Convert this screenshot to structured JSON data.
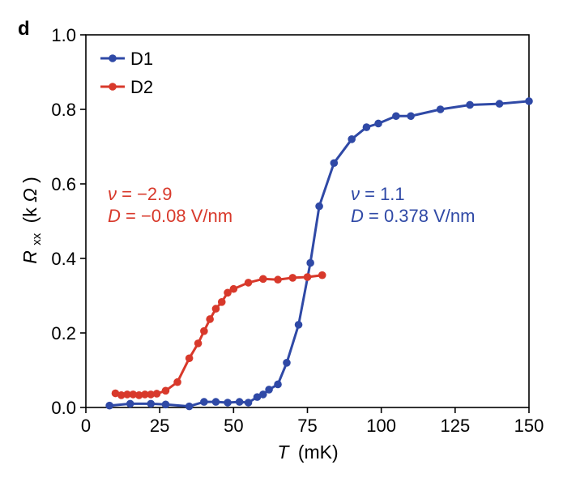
{
  "panel_label": "d",
  "chart_data": {
    "type": "line",
    "xlabel": {
      "symbol": "T",
      "unit": "(mK)"
    },
    "ylabel": {
      "symbol": "R",
      "subscript": "xx",
      "unit_open": "(k",
      "unit_symbol": "Ω",
      "unit_close": ")"
    },
    "xlim": [
      0,
      150
    ],
    "ylim": [
      0,
      1.0
    ],
    "x_ticks": [
      0,
      25,
      50,
      75,
      100,
      125,
      150
    ],
    "x_tick_labels": [
      "0",
      "25",
      "50",
      "75",
      "100",
      "125",
      "150"
    ],
    "y_ticks": [
      0,
      0.2,
      0.4,
      0.6,
      0.8,
      1.0
    ],
    "y_tick_labels": [
      "0.0",
      "0.2",
      "0.4",
      "0.6",
      "0.8",
      "1.0"
    ],
    "grid": false,
    "legend_position": "top-left",
    "series": [
      {
        "name": "D1",
        "color": "#2f49a6",
        "points": [
          [
            8,
            0.005
          ],
          [
            15,
            0.01
          ],
          [
            22,
            0.01
          ],
          [
            27,
            0.008
          ],
          [
            35,
            0.003
          ],
          [
            40,
            0.015
          ],
          [
            44,
            0.015
          ],
          [
            48,
            0.013
          ],
          [
            52,
            0.015
          ],
          [
            55,
            0.013
          ],
          [
            58,
            0.028
          ],
          [
            60,
            0.035
          ],
          [
            62,
            0.048
          ],
          [
            65,
            0.062
          ],
          [
            68,
            0.12
          ],
          [
            72,
            0.222
          ],
          [
            76,
            0.388
          ],
          [
            79,
            0.54
          ],
          [
            84,
            0.656
          ],
          [
            90,
            0.72
          ],
          [
            95,
            0.752
          ],
          [
            99,
            0.762
          ],
          [
            105,
            0.782
          ],
          [
            110,
            0.782
          ],
          [
            120,
            0.8
          ],
          [
            130,
            0.812
          ],
          [
            140,
            0.815
          ],
          [
            150,
            0.822
          ]
        ]
      },
      {
        "name": "D2",
        "color": "#d8392b",
        "points": [
          [
            10,
            0.038
          ],
          [
            12,
            0.033
          ],
          [
            14,
            0.035
          ],
          [
            16,
            0.035
          ],
          [
            18,
            0.033
          ],
          [
            20,
            0.035
          ],
          [
            22,
            0.035
          ],
          [
            24,
            0.037
          ],
          [
            27,
            0.045
          ],
          [
            31,
            0.068
          ],
          [
            35,
            0.132
          ],
          [
            38,
            0.172
          ],
          [
            40,
            0.205
          ],
          [
            42,
            0.237
          ],
          [
            44,
            0.265
          ],
          [
            46,
            0.283
          ],
          [
            48,
            0.308
          ],
          [
            50,
            0.318
          ],
          [
            55,
            0.335
          ],
          [
            60,
            0.345
          ],
          [
            65,
            0.343
          ],
          [
            70,
            0.348
          ],
          [
            75,
            0.35
          ],
          [
            80,
            0.355
          ]
        ]
      }
    ],
    "annotations": [
      {
        "series": "D2",
        "lines": [
          {
            "var": "ν",
            "rest": " = −2.9"
          },
          {
            "var": "D",
            "rest": " = −0.08 V/nm"
          }
        ]
      },
      {
        "series": "D1",
        "lines": [
          {
            "var": "ν",
            "rest": " = 1.1"
          },
          {
            "var": "D",
            "rest": " = 0.378 V/nm"
          }
        ]
      }
    ]
  }
}
